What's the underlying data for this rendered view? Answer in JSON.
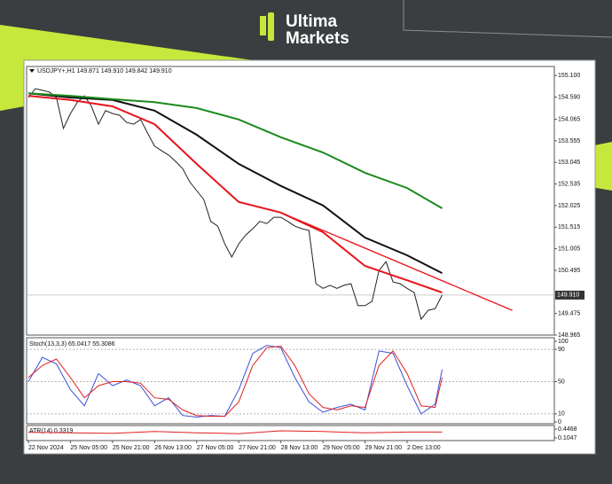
{
  "logo": [
    "Ultima",
    "Markets"
  ],
  "chart_data": {
    "type": "line",
    "title": "USDJPY+,H1  149.871 149.910 149.842 149.910",
    "xlim": [
      -0.25,
      75
    ],
    "xticks": [
      {
        "value": 0,
        "label": "22 Nov 2024"
      },
      {
        "value": 6,
        "label": "25 Nov 05:00"
      },
      {
        "value": 12,
        "label": "25 Nov 21:00"
      },
      {
        "value": 18,
        "label": "26 Nov 13:00"
      },
      {
        "value": 24,
        "label": "27 Nov 05:00"
      },
      {
        "value": 30,
        "label": "27 Nov 21:00"
      },
      {
        "value": 36,
        "label": "28 Nov 13:00"
      },
      {
        "value": 42,
        "label": "29 Nov 05:00"
      },
      {
        "value": 48,
        "label": "29 Nov 21:00"
      },
      {
        "value": 54,
        "label": "2 Dec 13:00"
      }
    ],
    "ylim": [
      148.965,
      155.25
    ],
    "yticks": [
      {
        "value": 155.1,
        "label": "155.100"
      },
      {
        "value": 154.59,
        "label": "154.590"
      },
      154.065,
      153.555,
      153.045,
      152.535,
      152.025,
      151.515,
      151.005,
      150.495,
      149.475,
      148.965
    ],
    "last_price": {
      "value": 149.91,
      "label": "149.910"
    },
    "series": [
      {
        "color": "#222222",
        "x": [
          0,
          1,
          2,
          3,
          4,
          5,
          6,
          7,
          8,
          9,
          10,
          11,
          12,
          13,
          14,
          15,
          16,
          17,
          18,
          19,
          20,
          21,
          22,
          23,
          24,
          25,
          26,
          27,
          28,
          29,
          30,
          31,
          32,
          33,
          34,
          35,
          36,
          37,
          38,
          39,
          40,
          41,
          42,
          43,
          44,
          45,
          46,
          47,
          48,
          49,
          50,
          51,
          52,
          53,
          54,
          55,
          56,
          57,
          58,
          59
        ],
        "values": [
          154.58,
          154.79,
          154.75,
          154.71,
          154.58,
          153.85,
          154.2,
          154.47,
          154.62,
          154.37,
          153.95,
          154.27,
          154.2,
          154.16,
          153.99,
          153.95,
          154.06,
          153.74,
          153.43,
          153.32,
          153.22,
          153.07,
          152.9,
          152.59,
          152.38,
          152.17,
          151.65,
          151.54,
          151.12,
          150.81,
          151.12,
          151.33,
          151.48,
          151.65,
          151.6,
          151.75,
          151.75,
          151.65,
          151.54,
          151.48,
          151.44,
          150.18,
          150.07,
          150.14,
          150.07,
          150.14,
          150.18,
          149.66,
          149.66,
          149.76,
          150.49,
          150.7,
          150.22,
          150.18,
          150.07,
          149.97,
          149.34,
          149.55,
          149.59,
          149.91
        ]
      },
      {
        "color": "#e8141b",
        "x": [
          0,
          6,
          12,
          18,
          24,
          30,
          36,
          42,
          48,
          54,
          59
        ],
        "values": [
          154.62,
          154.52,
          154.37,
          153.95,
          153.01,
          152.11,
          151.86,
          151.4,
          150.6,
          150.26,
          149.97
        ]
      },
      {
        "color": "#111111",
        "x": [
          0,
          6,
          12,
          18,
          24,
          30,
          36,
          42,
          48,
          54,
          59
        ],
        "values": [
          154.68,
          154.58,
          154.52,
          154.27,
          153.7,
          153.01,
          152.49,
          152.03,
          151.27,
          150.85,
          150.43
        ]
      },
      {
        "color": "#1d8a1d",
        "x": [
          0,
          6,
          12,
          18,
          24,
          30,
          36,
          42,
          48,
          54,
          59
        ],
        "values": [
          154.68,
          154.62,
          154.54,
          154.47,
          154.33,
          154.06,
          153.64,
          153.28,
          152.8,
          152.44,
          151.96
        ]
      }
    ],
    "trendline": {
      "color": "#e8141b",
      "x": [
        36,
        69
      ],
      "values": [
        151.86,
        149.55
      ]
    },
    "indicators": [
      {
        "title": "Stoch(13,3,3) 65.0417 55.3086",
        "ylim": [
          0,
          100
        ],
        "yticks": [
          100,
          90,
          50,
          10,
          0
        ],
        "levels": [
          90,
          50,
          10
        ],
        "series": [
          {
            "color": "#3a4fd8",
            "x": [
              0,
              2,
              4,
              6,
              8,
              10,
              12,
              14,
              16,
              18,
              20,
              22,
              24,
              26,
              28,
              30,
              32,
              34,
              36,
              38,
              40,
              42,
              44,
              46,
              48,
              50,
              52,
              54,
              56,
              58,
              59
            ],
            "values": [
              50,
              80,
              72,
              40,
              20,
              60,
              45,
              52,
              45,
              20,
              30,
              8,
              6,
              8,
              7,
              40,
              85,
              95,
              92,
              55,
              25,
              12,
              18,
              22,
              15,
              88,
              85,
              45,
              10,
              22,
              65.0417
            ]
          },
          {
            "color": "#e02020",
            "x": [
              0,
              2,
              4,
              6,
              8,
              10,
              12,
              14,
              16,
              18,
              20,
              22,
              24,
              26,
              28,
              30,
              32,
              34,
              36,
              38,
              40,
              42,
              44,
              46,
              48,
              50,
              52,
              54,
              56,
              58,
              59
            ],
            "values": [
              55,
              70,
              78,
              55,
              30,
              45,
              50,
              50,
              48,
              30,
              28,
              15,
              8,
              7,
              7,
              25,
              70,
              92,
              94,
              70,
              35,
              18,
              15,
              20,
              18,
              70,
              88,
              60,
              20,
              18,
              55.3086
            ]
          }
        ]
      },
      {
        "title": "ATR(14) 0.3319",
        "ylim": [
          0.1047,
          0.4468
        ],
        "yticks": [
          0.4468,
          0.1047
        ],
        "series": [
          {
            "color": "#e02020",
            "x": [
              0,
              6,
              12,
              18,
              24,
              30,
              36,
              42,
              48,
              54,
              59
            ],
            "values": [
              0.32,
              0.3,
              0.28,
              0.35,
              0.3,
              0.27,
              0.38,
              0.35,
              0.3,
              0.33,
              0.3319
            ]
          }
        ]
      }
    ]
  }
}
